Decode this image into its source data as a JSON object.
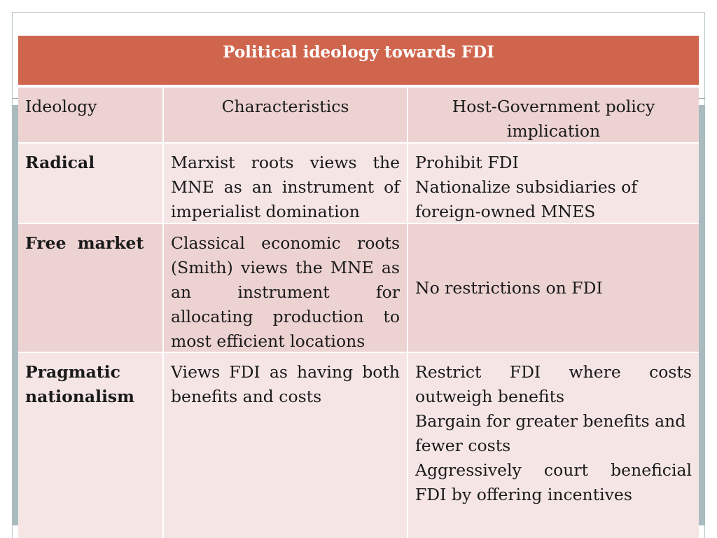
{
  "table": {
    "title": "Political ideology towards FDI",
    "headers": [
      "Ideology",
      "Characteristics",
      "Host-Government policy implication"
    ],
    "rows": [
      {
        "ideology": "Radical",
        "characteristics": [
          "Marxist roots views the",
          "MNE as an instrument of",
          "imperialist domination"
        ],
        "policy": [
          "Prohibit FDI",
          "Nationalize subsidiaries of",
          "foreign-owned MNES"
        ]
      },
      {
        "ideology": "Free market",
        "characteristics": [
          "Classical economic roots",
          "(Smith) views the MNE as",
          "an instrument for",
          "allocating production to",
          "most efficient locations"
        ],
        "policy": [
          "No restrictions on FDI"
        ]
      },
      {
        "ideology": [
          "Pragmatic",
          "nationalism"
        ],
        "characteristics": [
          "Views FDI as having both",
          "benefits and costs"
        ],
        "policy": [
          "Restrict FDI where costs",
          "outweigh benefits",
          "Bargain for greater benefits and",
          "fewer costs",
          "Aggressively court beneficial",
          "FDI by offering incentives"
        ]
      }
    ]
  },
  "colors": {
    "title_bg": "#d0654d",
    "row_dark": "#edd2d2",
    "row_light": "#f5e6e5",
    "frame": "#a9bbbf"
  }
}
